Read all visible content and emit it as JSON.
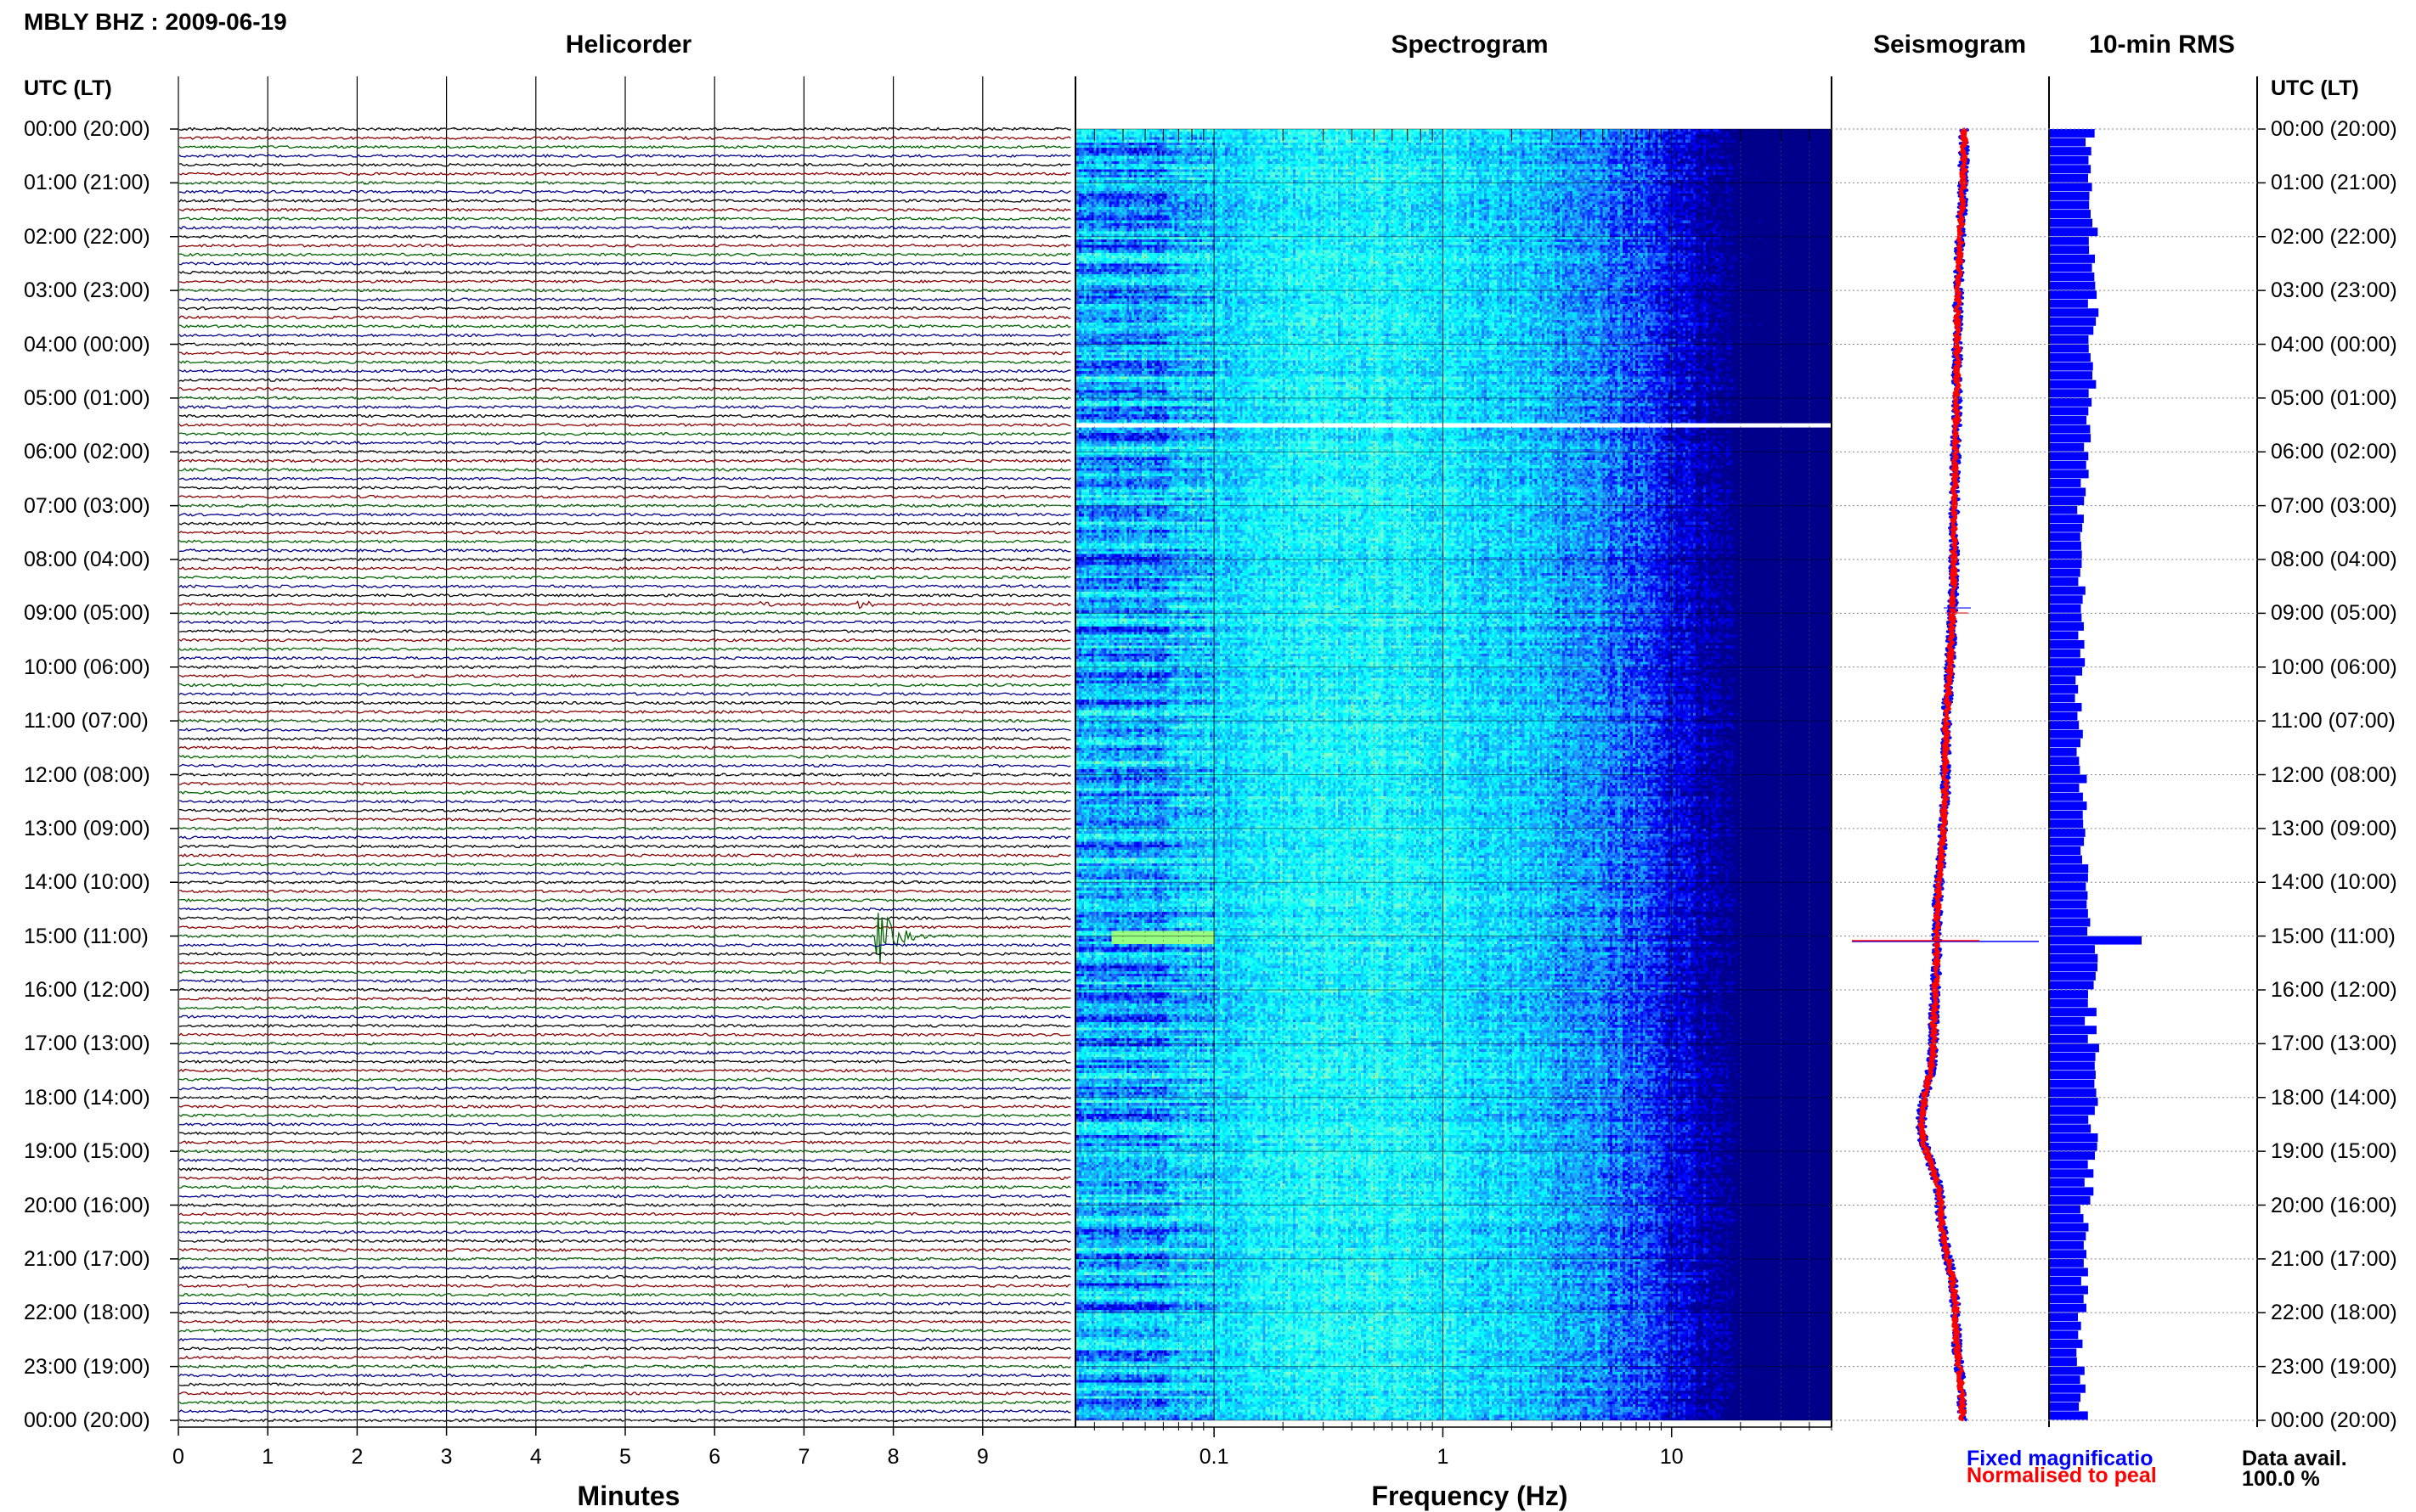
{
  "page": {
    "title": "MBLY BHZ : 2009-06-19",
    "time_axis_header": "UTC (LT)",
    "time_labels": [
      "00:00 (20:00)",
      "01:00 (21:00)",
      "02:00 (22:00)",
      "03:00 (23:00)",
      "04:00 (00:00)",
      "05:00 (01:00)",
      "06:00 (02:00)",
      "07:00 (03:00)",
      "08:00 (04:00)",
      "09:00 (05:00)",
      "10:00 (06:00)",
      "11:00 (07:00)",
      "12:00 (08:00)",
      "13:00 (09:00)",
      "14:00 (10:00)",
      "15:00 (11:00)",
      "16:00 (12:00)",
      "17:00 (13:00)",
      "18:00 (14:00)",
      "19:00 (15:00)",
      "20:00 (16:00)",
      "21:00 (17:00)",
      "22:00 (18:00)",
      "23:00 (19:00)",
      "00:00 (20:00)"
    ],
    "legend": {
      "fixed": {
        "label": "Fixed magnificatio",
        "color": "#0000ff"
      },
      "normalised": {
        "label": "Normalised to peal",
        "color": "#ff0000"
      }
    },
    "data_avail": {
      "label": "Data avail.",
      "value": "100.0 %"
    }
  },
  "chart_data": [
    {
      "type": "line",
      "title": "Helicorder",
      "xlabel": "Minutes",
      "xlim": [
        0,
        10
      ],
      "x_ticks": [
        "0",
        "1",
        "2",
        "3",
        "4",
        "5",
        "6",
        "7",
        "8",
        "9"
      ],
      "ylim_hours": [
        0,
        24
      ],
      "traces_per_hour": 6,
      "trace_colors": [
        "#000000",
        "#8b0000",
        "#006400",
        "#00008b"
      ],
      "events": [
        {
          "hour": 7.83,
          "minute": 6.3,
          "amplitude": 0.15
        },
        {
          "hour": 8.9,
          "minute": 6.5,
          "amplitude": 0.25
        },
        {
          "hour": 8.9,
          "minute": 7.6,
          "amplitude": 0.3
        },
        {
          "hour": 15.0,
          "minute": 7.8,
          "amplitude": 3.5
        },
        {
          "hour": 19.3,
          "minute": 5.8,
          "amplitude": 0.15
        }
      ]
    },
    {
      "type": "heatmap",
      "title": "Spectrogram",
      "xlabel": "Frequency (Hz)",
      "x_scale": "log",
      "xlim": [
        0.025,
        50
      ],
      "x_ticks": [
        "0.1",
        "1",
        "10"
      ],
      "ylim_hours": [
        0,
        24
      ],
      "colormap": [
        "#00008b",
        "#0000ff",
        "#1e90ff",
        "#00ffff",
        "#7fffd4",
        "#adff2f"
      ],
      "data_gap_hour": 5.5
    },
    {
      "type": "line",
      "title": "Seismogram",
      "ylim_hours": [
        0,
        24
      ],
      "series": [
        {
          "name": "Fixed magnificatio",
          "color": "#0000ff"
        },
        {
          "name": "Normalised to peal",
          "color": "#ff0000"
        }
      ],
      "offset_profile": [
        {
          "hour": 0,
          "offset": 0.3
        },
        {
          "hour": 4,
          "offset": 0.1
        },
        {
          "hour": 8,
          "offset": 0.0
        },
        {
          "hour": 12,
          "offset": -0.25
        },
        {
          "hour": 15,
          "offset": -0.5
        },
        {
          "hour": 17,
          "offset": -0.6
        },
        {
          "hour": 18.5,
          "offset": -0.95
        },
        {
          "hour": 20,
          "offset": -0.4
        },
        {
          "hour": 22,
          "offset": 0.05
        },
        {
          "hour": 24,
          "offset": 0.25
        }
      ],
      "spike_hour": 15.1
    },
    {
      "type": "bar",
      "title": "10-min RMS",
      "ylim_hours": [
        0,
        24
      ],
      "bin_minutes": 10,
      "bar_color": "#0000ff",
      "hourly_rms": [
        1.15,
        1.3,
        1.2,
        1.3,
        1.2,
        1.1,
        1.0,
        0.9,
        0.95,
        0.9,
        0.85,
        0.9,
        0.95,
        1.0,
        1.1,
        1.4,
        1.2,
        1.35,
        1.25,
        1.2,
        1.05,
        1.0,
        0.9,
        1.0
      ],
      "peak": {
        "hour": 15.0,
        "value": 2.7
      }
    }
  ]
}
